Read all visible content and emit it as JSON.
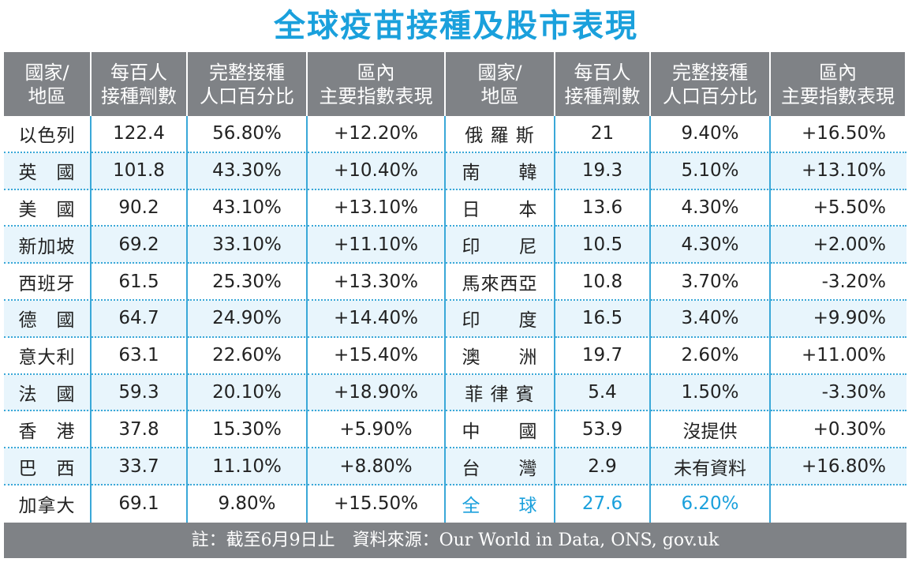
{
  "title": "全球疫苗接種及股市表現",
  "footer": "註：截至6月9日止　資料來源：Our World in Data, ONS, gov.uk",
  "chart_data": {
    "type": "table",
    "headers": [
      "國家/\n地區",
      "每百人\n接種劑數",
      "完整接種\n人口百分比",
      "區內\n主要指數表現",
      "國家/\n地區",
      "每百人\n接種劑數",
      "完整接種\n人口百分比",
      "區內\n主要指數表現"
    ],
    "left_rows": [
      {
        "name": "以色列",
        "doses": "122.4",
        "pct": "56.80%",
        "index": "+12.20%"
      },
      {
        "name": "英　國",
        "doses": "101.8",
        "pct": "43.30%",
        "index": "+10.40%"
      },
      {
        "name": "美　國",
        "doses": "90.2",
        "pct": "43.10%",
        "index": "+13.10%"
      },
      {
        "name": "新加坡",
        "doses": "69.2",
        "pct": "33.10%",
        "index": "+11.10%"
      },
      {
        "name": "西班牙",
        "doses": "61.5",
        "pct": "25.30%",
        "index": "+13.30%"
      },
      {
        "name": "德　國",
        "doses": "64.7",
        "pct": "24.90%",
        "index": "+14.40%"
      },
      {
        "name": "意大利",
        "doses": "63.1",
        "pct": "22.60%",
        "index": "+15.40%"
      },
      {
        "name": "法　國",
        "doses": "59.3",
        "pct": "20.10%",
        "index": "+18.90%"
      },
      {
        "name": "香　港",
        "doses": "37.8",
        "pct": "15.30%",
        "index": "+5.90%"
      },
      {
        "name": "巴　西",
        "doses": "33.7",
        "pct": "11.10%",
        "index": "+8.80%"
      },
      {
        "name": "加拿大",
        "doses": "69.1",
        "pct": "9.80%",
        "index": "+15.50%"
      }
    ],
    "right_rows": [
      {
        "name": "俄 羅 斯",
        "doses": "21",
        "pct": "9.40%",
        "index": "+16.50%"
      },
      {
        "name": "南　　韓",
        "doses": "19.3",
        "pct": "5.10%",
        "index": "+13.10%"
      },
      {
        "name": "日　　本",
        "doses": "13.6",
        "pct": "4.30%",
        "index": "+5.50%"
      },
      {
        "name": "印　　尼",
        "doses": "10.5",
        "pct": "4.30%",
        "index": "+2.00%"
      },
      {
        "name": "馬來西亞",
        "doses": "10.8",
        "pct": "3.70%",
        "index": "-3.20%"
      },
      {
        "name": "印　　度",
        "doses": "16.5",
        "pct": "3.40%",
        "index": "+9.90%"
      },
      {
        "name": "澳　　洲",
        "doses": "19.7",
        "pct": "2.60%",
        "index": "+11.00%"
      },
      {
        "name": "菲 律 賓",
        "doses": "5.4",
        "pct": "1.50%",
        "index": "-3.30%"
      },
      {
        "name": "中　　國",
        "doses": "53.9",
        "pct": "沒提供",
        "index": "+0.30%"
      },
      {
        "name": "台　　灣",
        "doses": "2.9",
        "pct": "未有資料",
        "index": "+16.80%"
      },
      {
        "name": "全　　球",
        "doses": "27.6",
        "pct": "6.20%",
        "index": ""
      }
    ],
    "colors": {
      "title": "#1aa0dc",
      "header_bg": "#7f8286",
      "band": "#e8f5fc",
      "rule": "#3aa8d8",
      "global_text": "#1aa0dc"
    }
  }
}
